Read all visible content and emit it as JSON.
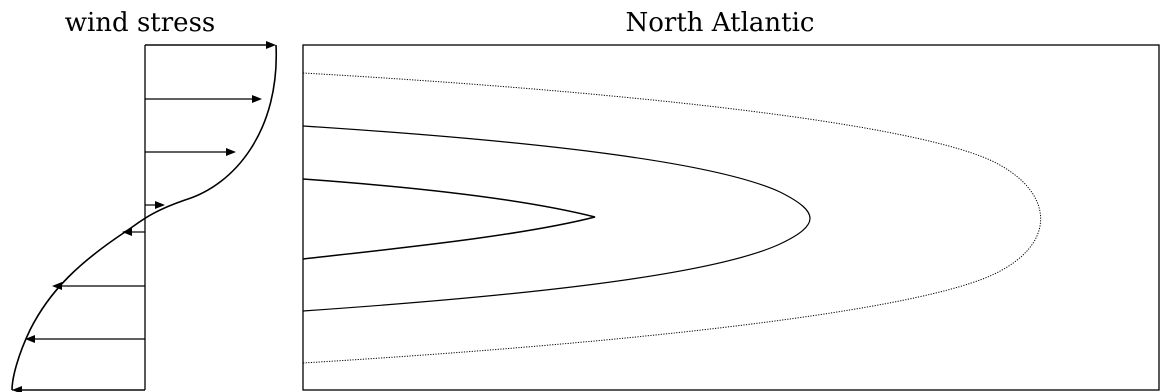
{
  "left_panel": {
    "title": "wind stress"
  },
  "right_panel": {
    "title": "North Atlantic"
  }
}
